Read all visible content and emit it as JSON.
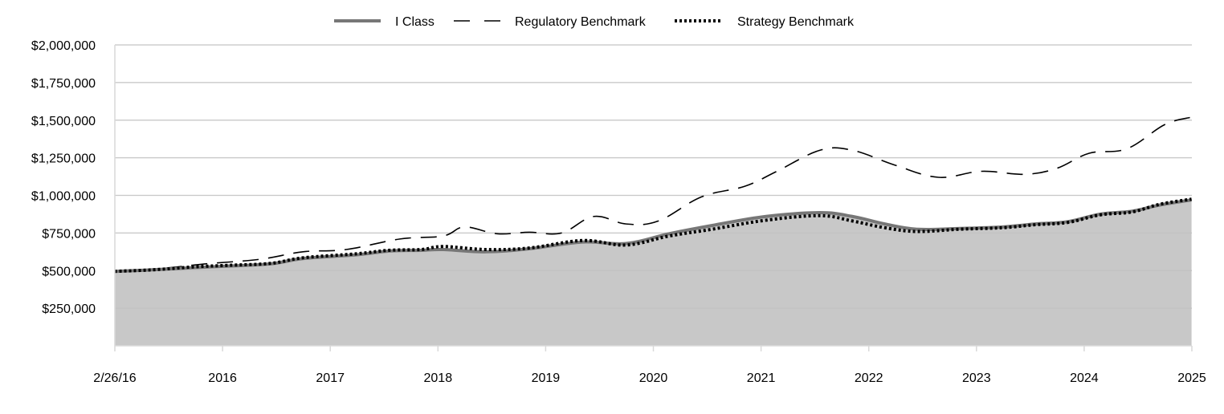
{
  "chart_data": {
    "type": "area",
    "title": "",
    "xlabel": "",
    "ylabel": "",
    "ylim": [
      0,
      2000000
    ],
    "yticks": [
      250000,
      500000,
      750000,
      1000000,
      1250000,
      1500000,
      1750000,
      2000000
    ],
    "ytick_labels": [
      "$250,000",
      "$500,000",
      "$750,000",
      "$1,000,000",
      "$1,250,000",
      "$1,500,000",
      "$1,750,000",
      "$2,000,000"
    ],
    "xlim": [
      2016.153,
      2026.153
    ],
    "xticks": [
      2016.153,
      2017.153,
      2018.153,
      2019.153,
      2020.153,
      2021.153,
      2022.153,
      2023.153,
      2024.153,
      2025.153,
      2026.153
    ],
    "xtick_labels": [
      "2/26/16",
      "2016",
      "2017",
      "2018",
      "2019",
      "2020",
      "2021",
      "2022",
      "2023",
      "2024",
      "2025"
    ],
    "grid": "horizontal",
    "legend_position": "top-center",
    "legend": [
      "I Class",
      "Regulatory Benchmark",
      "Strategy Benchmark"
    ],
    "series": [
      {
        "name": "I Class",
        "style": "solid-area",
        "color": "#777777",
        "x": [
          2016.15,
          2016.5,
          2016.9,
          2017.2,
          2017.6,
          2017.9,
          2018.4,
          2018.7,
          2019.0,
          2019.2,
          2019.6,
          2020.0,
          2020.5,
          2020.9,
          2021.3,
          2021.7,
          2022.2,
          2022.7,
          2023.0,
          2023.3,
          2023.6,
          2024.0,
          2024.4,
          2024.7,
          2025.0,
          2025.3,
          2025.6,
          2025.85,
          2026.15
        ],
        "y": [
          495000,
          505000,
          520000,
          530000,
          545000,
          580000,
          605000,
          630000,
          635000,
          640000,
          625000,
          645000,
          690000,
          680000,
          745000,
          800000,
          860000,
          885000,
          860000,
          810000,
          775000,
          780000,
          790000,
          810000,
          825000,
          875000,
          895000,
          935000,
          970000
        ]
      },
      {
        "name": "Regulatory Benchmark",
        "style": "dashed",
        "color": "#000000",
        "x": [
          2016.15,
          2016.6,
          2017.0,
          2017.5,
          2017.9,
          2018.3,
          2018.8,
          2019.2,
          2019.4,
          2019.7,
          2020.0,
          2020.3,
          2020.6,
          2020.9,
          2021.2,
          2021.6,
          2022.0,
          2022.3,
          2022.7,
          2023.0,
          2023.4,
          2023.8,
          2024.2,
          2024.6,
          2024.9,
          2025.2,
          2025.55,
          2025.9,
          2026.15
        ],
        "y": [
          495000,
          515000,
          545000,
          575000,
          625000,
          640000,
          710000,
          730000,
          790000,
          745000,
          755000,
          750000,
          860000,
          810000,
          830000,
          990000,
          1060000,
          1160000,
          1300000,
          1300000,
          1200000,
          1120000,
          1160000,
          1140000,
          1180000,
          1280000,
          1310000,
          1470000,
          1520000
        ]
      },
      {
        "name": "Strategy Benchmark",
        "style": "dotted",
        "color": "#000000",
        "x": [
          2016.15,
          2016.5,
          2016.9,
          2017.2,
          2017.6,
          2017.9,
          2018.4,
          2018.7,
          2019.0,
          2019.2,
          2019.6,
          2020.0,
          2020.5,
          2020.9,
          2021.3,
          2021.7,
          2022.2,
          2022.7,
          2023.0,
          2023.3,
          2023.6,
          2024.0,
          2024.4,
          2024.7,
          2025.0,
          2025.3,
          2025.6,
          2025.85,
          2026.15
        ],
        "y": [
          495000,
          505000,
          525000,
          535000,
          548000,
          585000,
          612000,
          635000,
          640000,
          660000,
          640000,
          650000,
          700000,
          670000,
          730000,
          775000,
          835000,
          865000,
          830000,
          785000,
          760000,
          775000,
          785000,
          805000,
          820000,
          870000,
          890000,
          940000,
          975000
        ]
      }
    ]
  }
}
